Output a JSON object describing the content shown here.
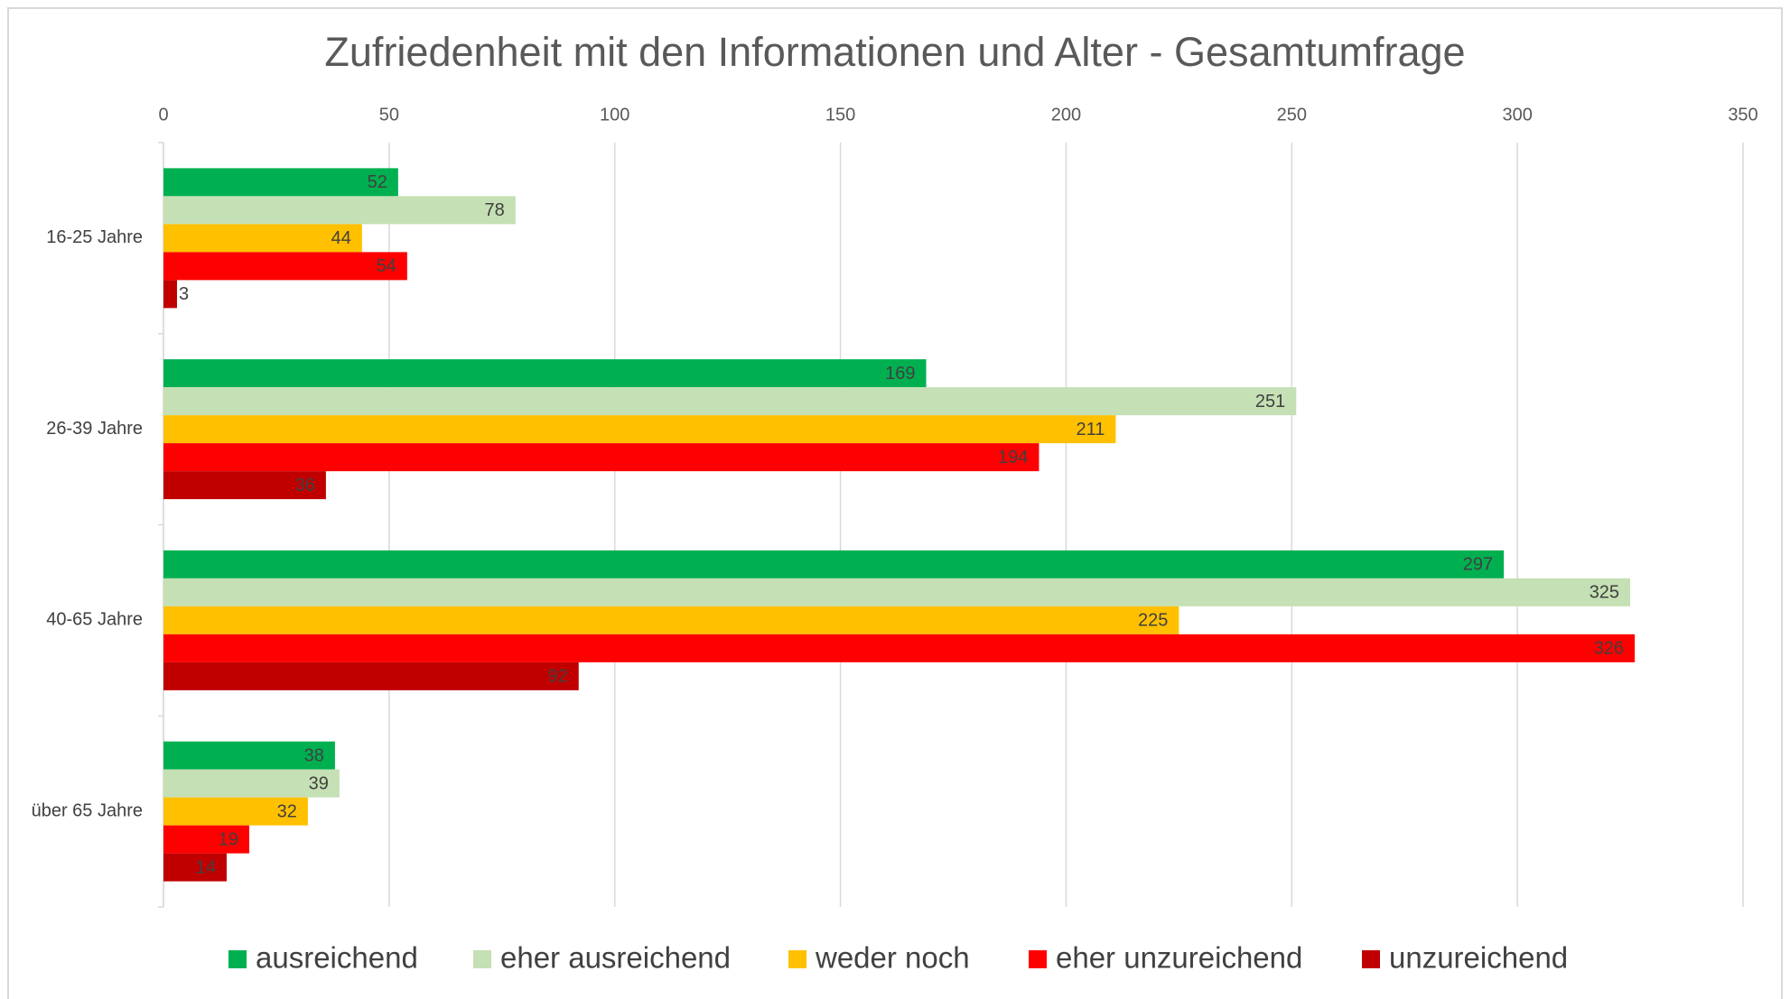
{
  "chart_data": {
    "type": "hbar",
    "title": "Zufriedenheit mit den Informationen und Alter - Gesamtumfrage",
    "categories": [
      "16-25 Jahre",
      "26-39 Jahre",
      "40-65 Jahre",
      "über 65 Jahre"
    ],
    "series": [
      {
        "name": "ausreichend",
        "color": "#00b050",
        "values": [
          52,
          169,
          297,
          38
        ]
      },
      {
        "name": "eher ausreichend",
        "color": "#c5e0b4",
        "values": [
          78,
          251,
          325,
          39
        ]
      },
      {
        "name": "weder noch",
        "color": "#ffc000",
        "values": [
          44,
          211,
          225,
          32
        ]
      },
      {
        "name": "eher unzureichend",
        "color": "#ff0000",
        "values": [
          54,
          194,
          326,
          19
        ]
      },
      {
        "name": "unzureichend",
        "color": "#c00000",
        "values": [
          3,
          36,
          92,
          14
        ]
      }
    ],
    "xlim": [
      0,
      350
    ],
    "xticks": [
      0,
      50,
      100,
      150,
      200,
      250,
      300,
      350
    ],
    "grid": true,
    "legend": "bottom"
  }
}
